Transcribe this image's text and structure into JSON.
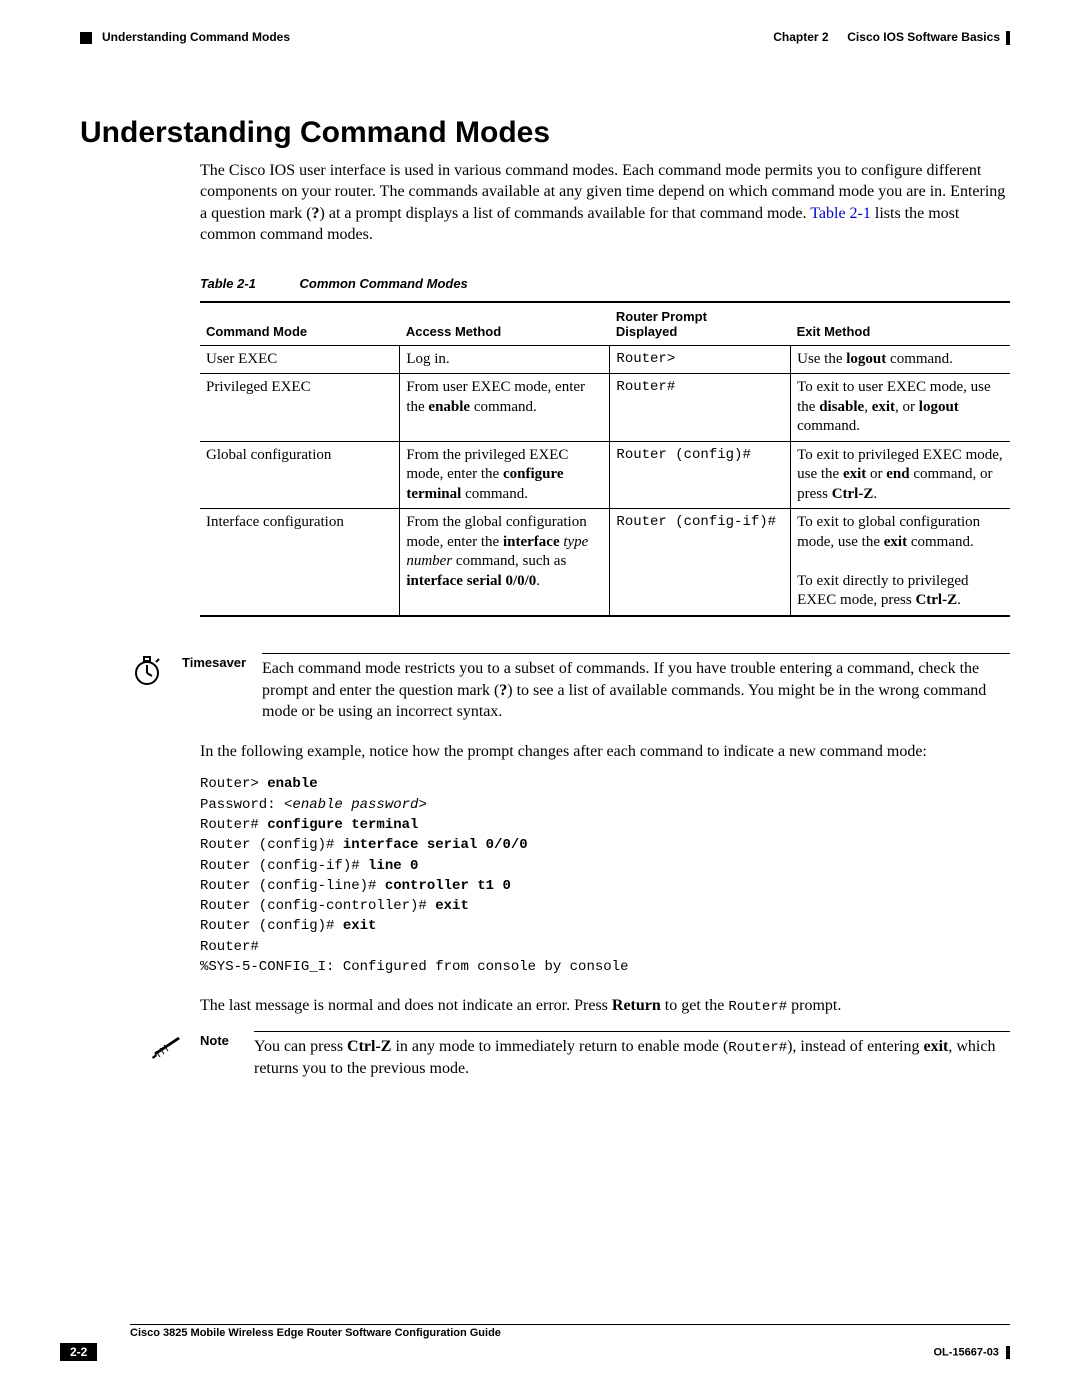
{
  "header": {
    "section": "Understanding Command Modes",
    "chapter_prefix": "Chapter 2",
    "chapter_title": "Cisco IOS Software Basics"
  },
  "title": "Understanding Command Modes",
  "intro": {
    "p1a": "The Cisco IOS user interface is used in various command modes. Each command mode permits you to configure different components on your router. The commands available at any given time depend on which command mode you are in. Entering a question mark (",
    "p1_q": "?",
    "p1b": ") at a prompt displays a list of commands available for that command mode. ",
    "link": "Table 2-1",
    "p1c": " lists the most common command modes."
  },
  "table_caption": {
    "num": "Table 2-1",
    "title": "Common Command Modes"
  },
  "table": {
    "columns": [
      "Command Mode",
      "Access Method",
      "Router Prompt Displayed",
      "Exit Method"
    ],
    "rows": [
      {
        "mode": "User EXEC",
        "access_html": "Log in.",
        "prompt": "Router>",
        "exit_html": "Use the <b>logout</b> command."
      },
      {
        "mode": "Privileged EXEC",
        "access_html": "From user EXEC mode, enter the <b>enable</b> command.",
        "prompt": "Router#",
        "exit_html": "To exit to user EXEC mode, use the <b>disable</b>, <b>exit</b>, or <b>logout</b> command."
      },
      {
        "mode": "Global configuration",
        "access_html": "From the privileged EXEC mode, enter the <b>configure terminal</b> command.",
        "prompt": "Router (config)#",
        "exit_html": "To exit to privileged EXEC mode, use the <b>exit</b> or <b>end</b> command, or press <b>Ctrl-Z</b>."
      },
      {
        "mode": "Interface configuration",
        "access_html": "From the global configuration mode, enter the <b>interface</b> <i>type number</i> command, such as <b>interface serial 0/0/0</b>.",
        "prompt": "Router (config-if)#",
        "exit_html": "To exit to global configuration mode, use the <b>exit</b> command.<br><br>To exit directly to privileged EXEC mode, press <b>Ctrl-Z</b>."
      }
    ]
  },
  "timesaver": {
    "label": "Timesaver",
    "text_html": "Each command mode restricts you to a subset of commands. If you have trouble entering a command, check the prompt and enter the question mark (<b>?</b>) to see a list of available commands. You might be in the wrong command mode or be using an incorrect syntax."
  },
  "example_intro": "In the following example, notice how the prompt changes after each command to indicate a new command mode:",
  "code_html": "Router&gt; <b>enable</b>\nPassword: <i>&lt;enable password&gt;</i>\nRouter# <b>configure terminal</b>\nRouter (config)# <b>interface serial 0/0/0</b>\nRouter (config-if)# <b>line 0</b>\nRouter (config-line)# <b>controller t1 0</b>\nRouter (config-controller)# <b>exit</b>\nRouter (config)# <b>exit</b>\nRouter#\n%SYS-5-CONFIG_I: Configured from console by console",
  "after_code_html": "The last message is normal and does not indicate an error. Press <b>Return</b> to get the <span class=\"mono\">Router#</span> prompt.",
  "note": {
    "label": "Note",
    "text_html": "You can press <b>Ctrl-Z</b> in any mode to immediately return to enable mode (<span class=\"mono\">Router#</span>), instead of entering <b>exit</b>, which returns you to the previous mode."
  },
  "footer": {
    "book": "Cisco 3825 Mobile Wireless Edge Router Software Configuration Guide",
    "page": "2-2",
    "doc": "OL-15667-03"
  }
}
